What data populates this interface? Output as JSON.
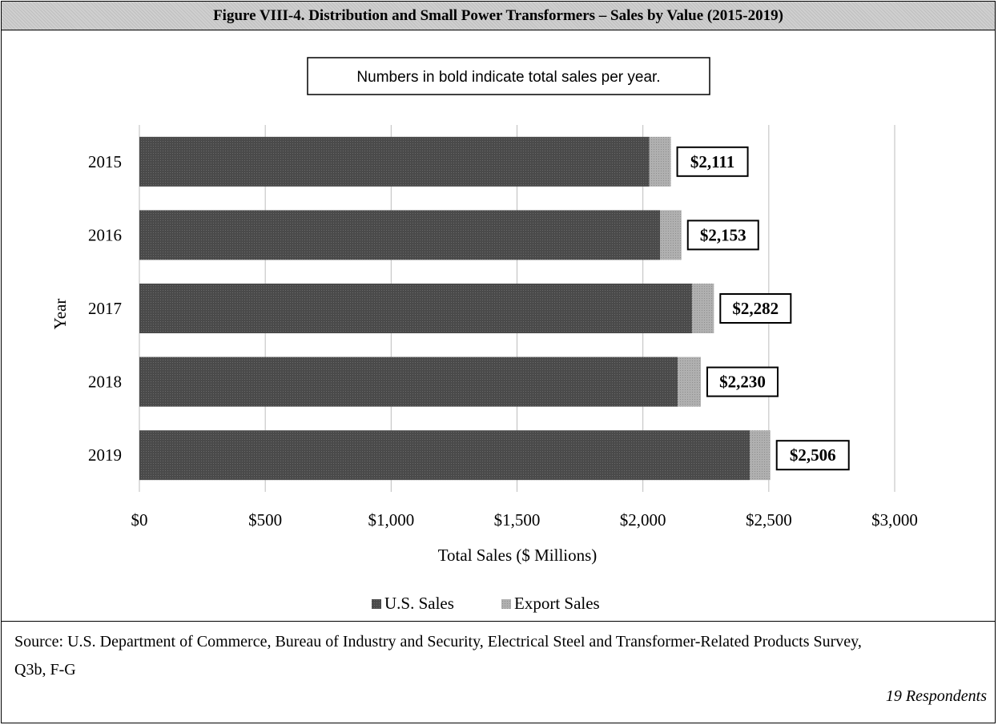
{
  "title": "Figure VIII-4.  Distribution and Small Power Transformers – Sales by Value (2015-2019)",
  "note": "Numbers in bold indicate total sales per year.",
  "source": "Source: U.S. Department of Commerce, Bureau of Industry and Security, Electrical Steel and Transformer-Related Products Survey, Q3b, F-G",
  "respondents": "19 Respondents",
  "colors": {
    "us_sales": "#4a4a4a",
    "export_sales": "#b0b0b0",
    "title_bg": "#cfcfcf"
  },
  "chart_data": {
    "type": "bar",
    "orientation": "horizontal",
    "stacked": true,
    "categories": [
      "2015",
      "2016",
      "2017",
      "2018",
      "2019"
    ],
    "series": [
      {
        "name": "U.S. Sales",
        "values": [
          2025,
          2068,
          2195,
          2138,
          2425
        ]
      },
      {
        "name": "Export Sales",
        "values": [
          86,
          85,
          87,
          92,
          81
        ]
      }
    ],
    "totals": [
      2111,
      2153,
      2282,
      2230,
      2506
    ],
    "total_labels": [
      "$2,111",
      "$2,153",
      "$2,282",
      "$2,230",
      "$2,506"
    ],
    "xlabel": "Total Sales ($ Millions)",
    "ylabel": "Year",
    "xlim": [
      0,
      3000
    ],
    "xticks": [
      0,
      500,
      1000,
      1500,
      2000,
      2500,
      3000
    ],
    "xtick_labels": [
      "$0",
      "$500",
      "$1,000",
      "$1,500",
      "$2,000",
      "$2,500",
      "$3,000"
    ],
    "grid": "vertical",
    "legend": "bottom"
  }
}
